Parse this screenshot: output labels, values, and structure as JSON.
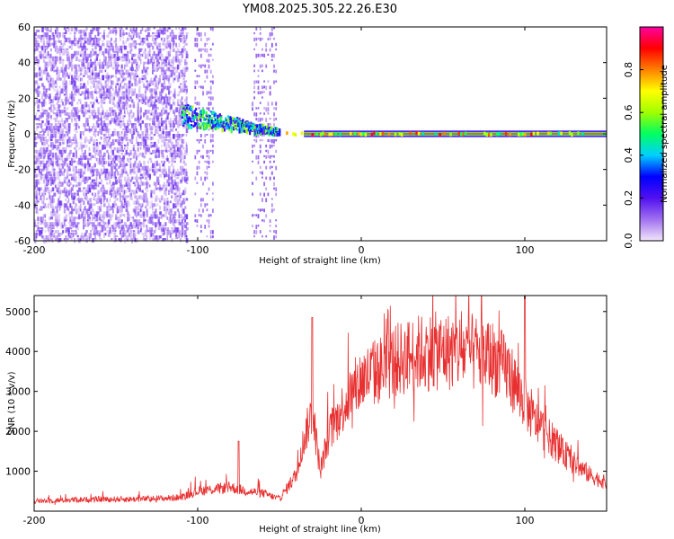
{
  "chart_data": [
    {
      "type": "heatmap",
      "title": "YM08.2025.305.22.26.E30",
      "xlabel": "Height of straight line (km)",
      "ylabel": "Frequency (Hz)",
      "xlim": [
        -200,
        150
      ],
      "ylim": [
        -60,
        60
      ],
      "xticks": [
        -200,
        -100,
        0,
        100
      ],
      "yticks": [
        -60,
        -40,
        -20,
        0,
        20,
        40,
        60
      ],
      "colorbar": {
        "label": "Normalized spectral amplitude",
        "range": [
          0.0,
          1.0
        ],
        "ticks": [
          "0.0",
          "0.2",
          "0.4",
          "0.6",
          "0.8"
        ],
        "colors": [
          "#f2e6fa",
          "#a070f0",
          "#5010f0",
          "#0000ff",
          "#00d0ff",
          "#00ff60",
          "#a0ff00",
          "#ffff00",
          "#ff8000",
          "#ff0000",
          "#ff00a0"
        ]
      },
      "features": [
        {
          "x_range": [
            -200,
            -107
          ],
          "freq_range": [
            -60,
            60
          ],
          "amplitude": 0.08,
          "description": "scattered weak energy"
        },
        {
          "x_range": [
            -110,
            -50
          ],
          "freq_range": [
            -5,
            12
          ],
          "amplitude": 0.35,
          "description": "band converging to 0 Hz"
        },
        {
          "x_range": [
            -50,
            150
          ],
          "freq_range": [
            0,
            0
          ],
          "amplitude": 0.9,
          "description": "strong line at 0 Hz"
        }
      ]
    },
    {
      "type": "line",
      "xlabel": "Height of straight line (km)",
      "ylabel": "SNR (10 * v/v)",
      "xlim": [
        -200,
        150
      ],
      "ylim": [
        0,
        5400
      ],
      "xticks": [
        -200,
        -100,
        0,
        100
      ],
      "yticks": [
        1000,
        2000,
        3000,
        4000,
        5000
      ],
      "series": [
        {
          "name": "SNR",
          "color": "#e83030",
          "x": [
            -200,
            -180,
            -160,
            -140,
            -120,
            -110,
            -100,
            -90,
            -80,
            -70,
            -60,
            -50,
            -40,
            -35,
            -30,
            -25,
            -20,
            -15,
            -10,
            -5,
            0,
            10,
            20,
            30,
            40,
            50,
            60,
            70,
            80,
            90,
            95,
            100,
            105,
            110,
            120,
            130,
            140,
            150
          ],
          "values": [
            250,
            280,
            300,
            300,
            320,
            350,
            500,
            550,
            600,
            500,
            450,
            300,
            900,
            1800,
            2500,
            1000,
            1900,
            2300,
            2700,
            3000,
            3300,
            3500,
            3750,
            3900,
            4000,
            4000,
            4000,
            3950,
            3850,
            3500,
            3100,
            2700,
            2300,
            2100,
            1600,
            1200,
            900,
            700
          ],
          "peaks": [
            {
              "x": -30,
              "value": 4850
            },
            {
              "x": 100,
              "value": 5400
            },
            {
              "x": -75,
              "value": 1750
            }
          ]
        }
      ]
    }
  ]
}
